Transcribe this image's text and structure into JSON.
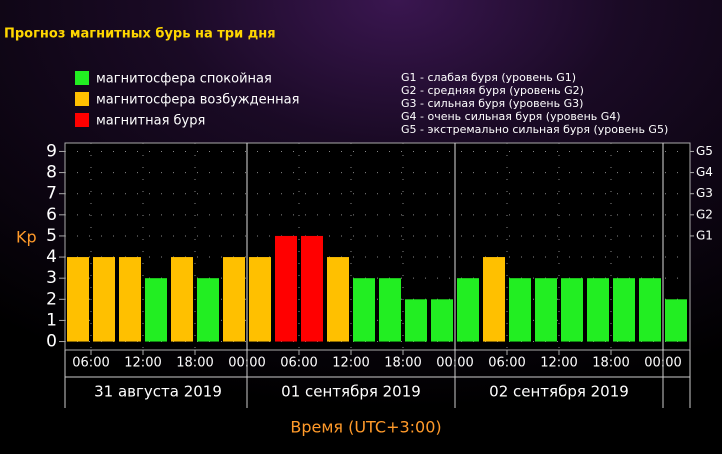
{
  "chart_data": {
    "type": "bar",
    "title": "Прогноз магнитных бурь на три дня",
    "legend": [
      {
        "name": "магнитосфера спокойная",
        "color": "#22ee22"
      },
      {
        "name": "магнитосфера возбужденная",
        "color": "#ffc000"
      },
      {
        "name": "магнитная буря",
        "color": "#ff0000"
      }
    ],
    "storm_levels": [
      "G1 - слабая буря (уровень G1)",
      "G2 - средняя буря (уровень G2)",
      "G3 - сильная буря (уровень G3)",
      "G4 - очень сильная буря (уровень G4)",
      "G5 - экстремально сильная буря (уровень G5)"
    ],
    "ylabel": "Kp",
    "xlabel": "Время (UTC+3:00)",
    "values": [
      4,
      4,
      4,
      3,
      4,
      3,
      4,
      4,
      5,
      5,
      4,
      3,
      3,
      2,
      2,
      3,
      4,
      3,
      3,
      3,
      3,
      3,
      3,
      2
    ],
    "colors": [
      "#ffc000",
      "#ffc000",
      "#ffc000",
      "#22ee22",
      "#ffc000",
      "#22ee22",
      "#ffc000",
      "#ffc000",
      "#ff0000",
      "#ff0000",
      "#ffc000",
      "#22ee22",
      "#22ee22",
      "#22ee22",
      "#22ee22",
      "#22ee22",
      "#ffc000",
      "#22ee22",
      "#22ee22",
      "#22ee22",
      "#22ee22",
      "#22ee22",
      "#22ee22",
      "#22ee22"
    ],
    "xtick_labels": [
      "06:00",
      "12:00",
      "18:00",
      "00:00",
      "06:00",
      "12:00",
      "18:00",
      "00:00",
      "06:00",
      "12:00",
      "18:00",
      "00:00"
    ],
    "days": [
      "31 августа 2019",
      "01 сентября 2019",
      "02 сентября 2019"
    ],
    "ylim": [
      -0.4,
      9.4
    ],
    "yticks": [
      0,
      1,
      2,
      3,
      4,
      5,
      6,
      7,
      8,
      9
    ],
    "y2lim": [
      -0.4,
      9.4
    ],
    "y2ticks": [
      {
        "value": 5,
        "label": "G1"
      },
      {
        "value": 6,
        "label": "G2"
      },
      {
        "value": 7,
        "label": "G3"
      },
      {
        "value": 8,
        "label": "G4"
      },
      {
        "value": 9,
        "label": "G5"
      }
    ],
    "grid": true
  }
}
